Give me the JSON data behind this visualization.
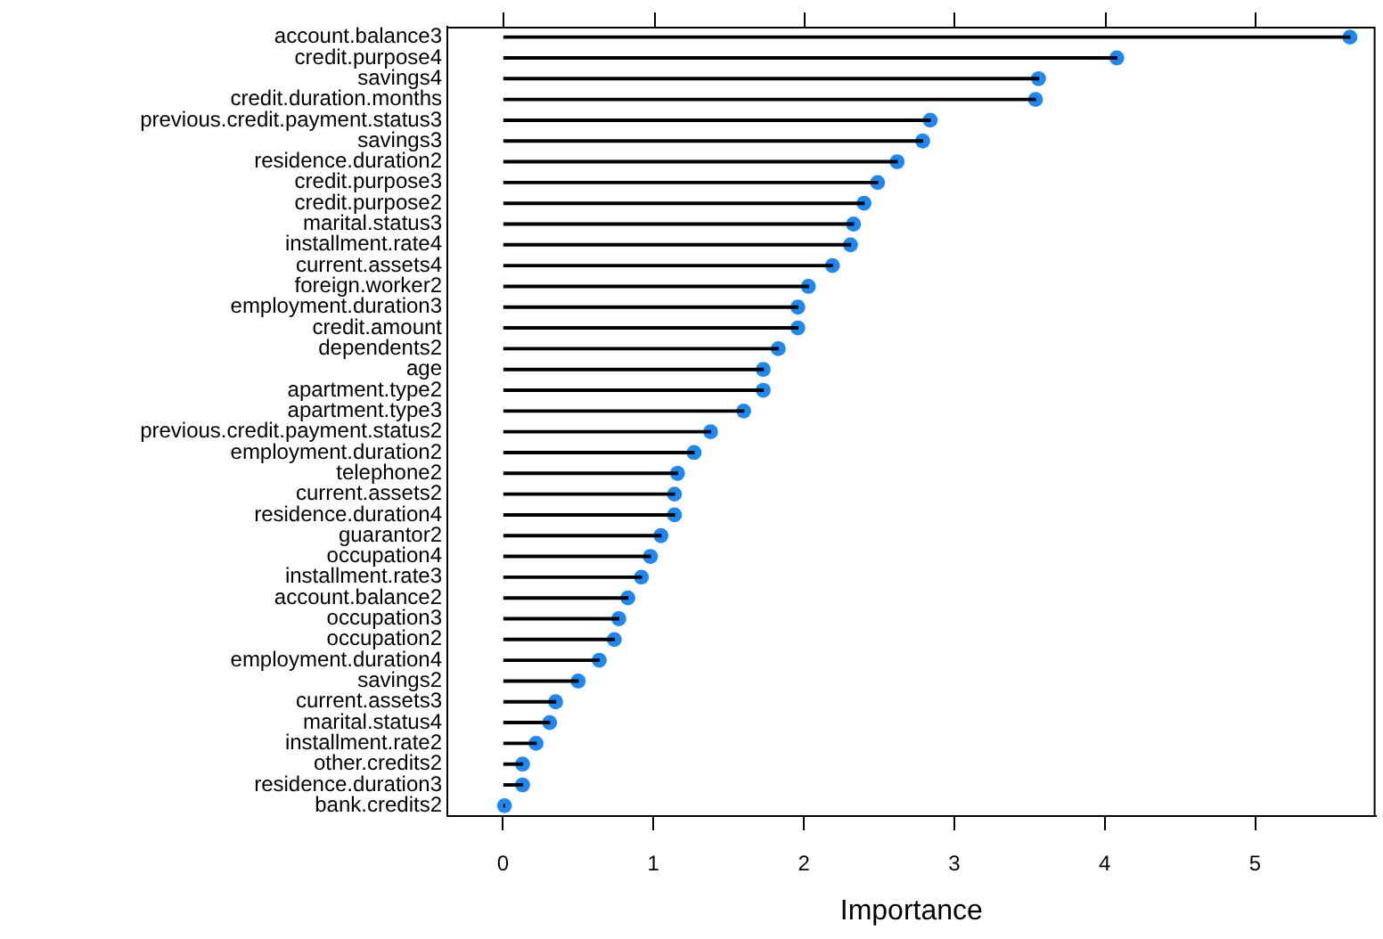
{
  "chart_data": {
    "type": "lollipop",
    "orientation": "horizontal",
    "xlabel": "Importance",
    "categories": [
      "account.balance3",
      "credit.purpose4",
      "savings4",
      "credit.duration.months",
      "previous.credit.payment.status3",
      "savings3",
      "residence.duration2",
      "credit.purpose3",
      "credit.purpose2",
      "marital.status3",
      "installment.rate4",
      "current.assets4",
      "foreign.worker2",
      "employment.duration3",
      "credit.amount",
      "dependents2",
      "age",
      "apartment.type2",
      "apartment.type3",
      "previous.credit.payment.status2",
      "employment.duration2",
      "telephone2",
      "current.assets2",
      "residence.duration4",
      "guarantor2",
      "occupation4",
      "installment.rate3",
      "account.balance2",
      "occupation3",
      "occupation2",
      "employment.duration4",
      "savings2",
      "current.assets3",
      "marital.status4",
      "installment.rate2",
      "other.credits2",
      "residence.duration3",
      "bank.credits2"
    ],
    "values": [
      5.63,
      4.08,
      3.56,
      3.54,
      2.84,
      2.79,
      2.62,
      2.49,
      2.4,
      2.33,
      2.31,
      2.19,
      2.03,
      1.96,
      1.96,
      1.83,
      1.73,
      1.73,
      1.6,
      1.38,
      1.27,
      1.16,
      1.14,
      1.14,
      1.05,
      0.98,
      0.92,
      0.83,
      0.77,
      0.74,
      0.64,
      0.5,
      0.35,
      0.31,
      0.22,
      0.13,
      0.13,
      0.01
    ],
    "color": "#1e88f0",
    "marker": "circle",
    "grid": false,
    "legend": false,
    "xlim": [
      -0.37,
      5.8
    ],
    "xticks": [
      0,
      1,
      2,
      3,
      4,
      5
    ]
  }
}
